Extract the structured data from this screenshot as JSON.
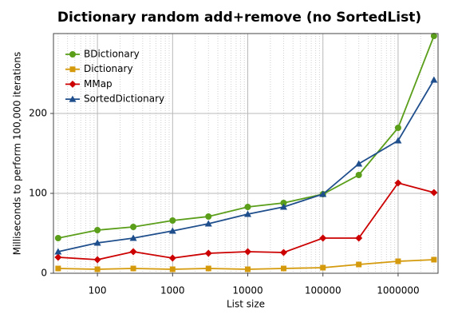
{
  "chart_data": {
    "type": "line",
    "title": "Dictionary random add+remove (no SortedList)",
    "x_label": "List size",
    "y_label": "Milliseconds to perform 100,000 iterations",
    "x": [
      30,
      100,
      300,
      1000,
      3000,
      10000,
      30000,
      100000,
      300000,
      1000000,
      3000000
    ],
    "x_scale": "log",
    "xlim": [
      26,
      3400000
    ],
    "xticks": [
      100,
      1000,
      10000,
      100000,
      1000000
    ],
    "ylim": [
      0,
      300
    ],
    "yticks": [
      0,
      100,
      200
    ],
    "grid": true,
    "legend": "upper left",
    "series": [
      {
        "name": "BDictionary",
        "color": "#5a9e1a",
        "marker": "circle",
        "values": [
          44,
          54,
          58,
          66,
          71,
          83,
          88,
          99,
          123,
          182,
          297
        ]
      },
      {
        "name": "Dictionary",
        "color": "#d49a0c",
        "marker": "square",
        "values": [
          6,
          5,
          6,
          5,
          6,
          5,
          6,
          7,
          11,
          15,
          17
        ]
      },
      {
        "name": "MMap",
        "color": "#cc0000",
        "marker": "diamond",
        "values": [
          20,
          17,
          27,
          19,
          25,
          27,
          26,
          44,
          44,
          113,
          101
        ]
      },
      {
        "name": "SortedDictionary",
        "color": "#1f4e8c",
        "marker": "triangle",
        "values": [
          27,
          38,
          44,
          53,
          62,
          74,
          83,
          99,
          137,
          166,
          242
        ]
      }
    ]
  }
}
